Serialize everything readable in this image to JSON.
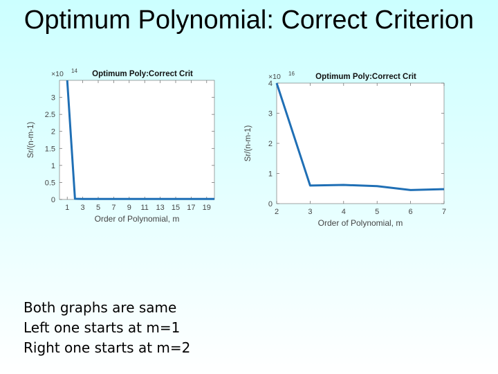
{
  "slide": {
    "title": "Optimum Polynomial: Correct Criterion",
    "notes": [
      "Both graphs are same",
      "Left one starts at m=1",
      "Right one starts at m=2"
    ]
  },
  "colors": {
    "line": "#1f6fb5",
    "axis": "#666666",
    "tick_text": "#444444"
  },
  "chart_data": [
    {
      "type": "line",
      "title": "Optimum Poly:Correct Crit",
      "xlabel": "Order of Polynomial, m",
      "ylabel": "Sr/(n-m-1)",
      "exponent_label": "×10 ",
      "exponent_power": "14",
      "x": [
        1,
        2,
        3,
        4,
        5,
        6,
        7,
        8,
        9,
        10,
        11,
        12,
        13,
        14,
        15,
        16,
        17,
        18,
        19,
        20
      ],
      "y": [
        3.5,
        0.02,
        0.015,
        0.015,
        0.015,
        0.015,
        0.015,
        0.015,
        0.015,
        0.015,
        0.015,
        0.015,
        0.015,
        0.015,
        0.015,
        0.015,
        0.015,
        0.015,
        0.015,
        0.015
      ],
      "xlim": [
        0,
        20
      ],
      "ylim": [
        0,
        3.5
      ],
      "xticks": [
        1,
        3,
        5,
        7,
        9,
        11,
        13,
        15,
        17,
        19
      ],
      "yticks": [
        0,
        0.5,
        1,
        1.5,
        2,
        2.5,
        3
      ],
      "ytick_labels": [
        "0",
        "0.5",
        "1",
        "1.5",
        "2",
        "2.5",
        "3"
      ],
      "grid": false
    },
    {
      "type": "line",
      "title": "Optimum Poly:Correct Crit",
      "xlabel": "Order of Polynomial, m",
      "ylabel": "Sr/(n-m-1)",
      "exponent_label": "×10 ",
      "exponent_power": "16",
      "x": [
        2,
        3,
        4,
        5,
        6,
        7
      ],
      "y": [
        4.0,
        0.6,
        0.62,
        0.58,
        0.45,
        0.48
      ],
      "xlim": [
        2,
        7
      ],
      "ylim": [
        0,
        4
      ],
      "xticks": [
        2,
        3,
        4,
        5,
        6,
        7
      ],
      "yticks": [
        0,
        1,
        2,
        3,
        4
      ],
      "ytick_labels": [
        "0",
        "1",
        "2",
        "3",
        "4"
      ],
      "grid": false
    }
  ]
}
